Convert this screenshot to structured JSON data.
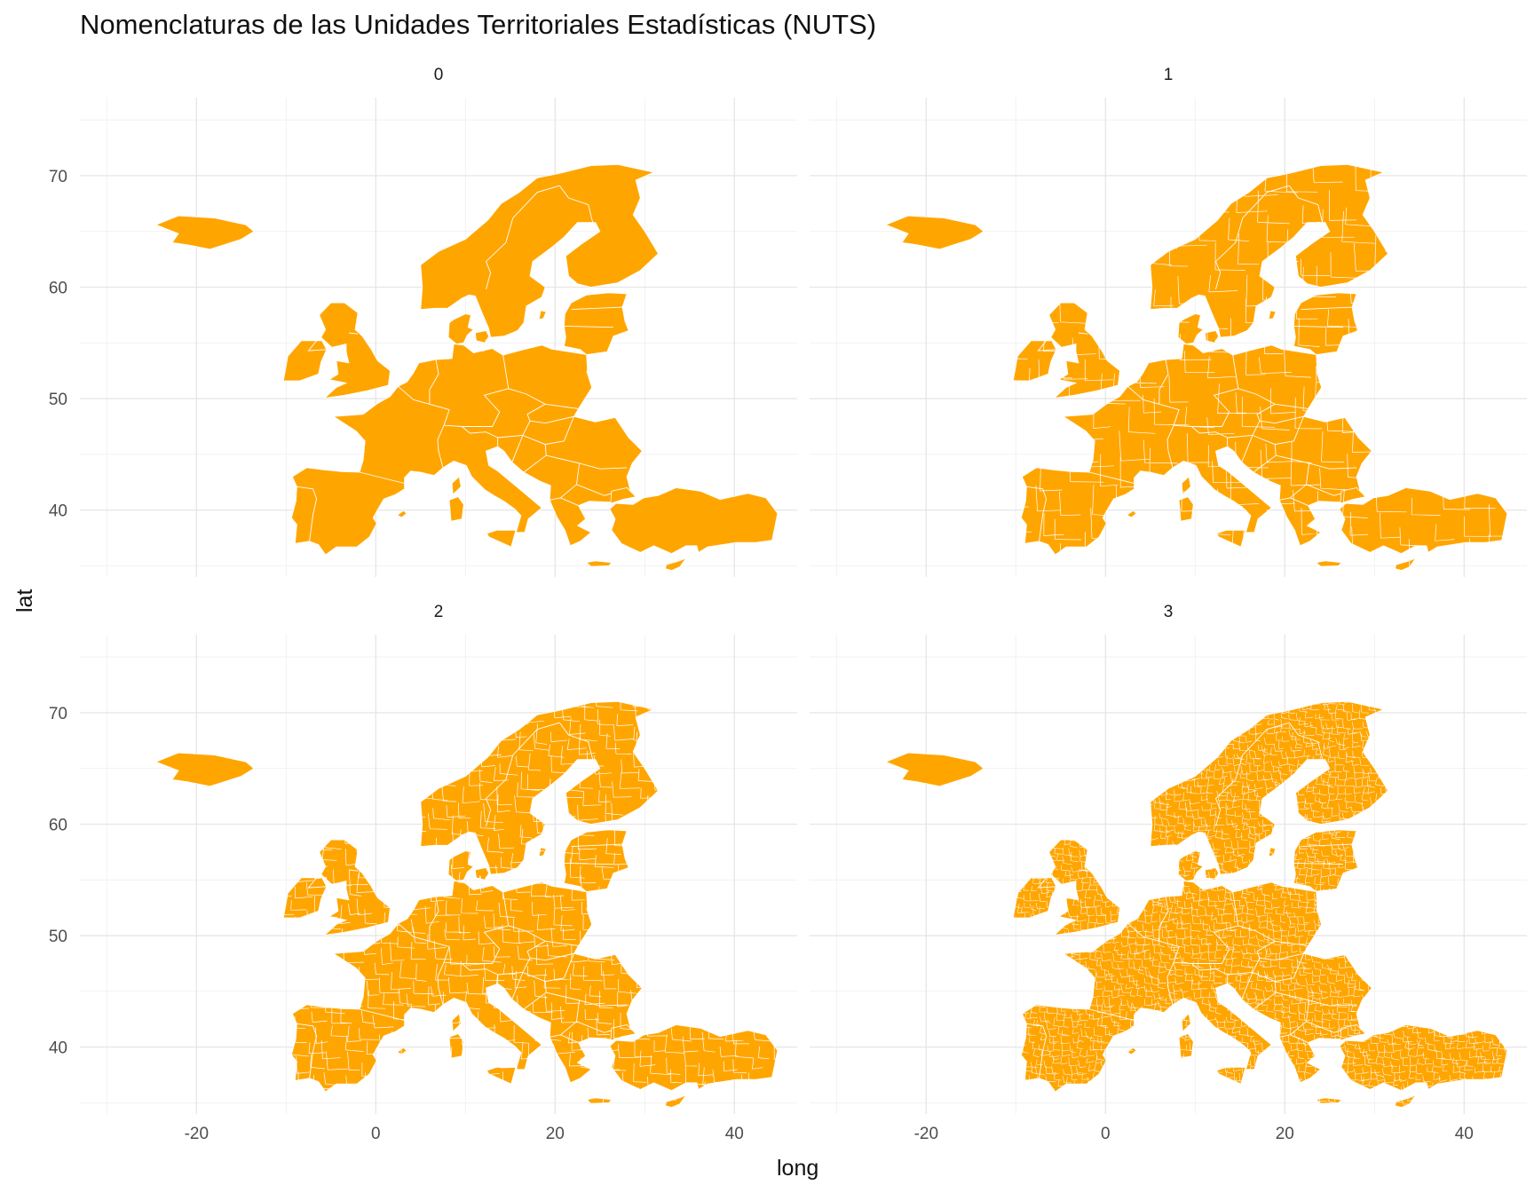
{
  "title": "Nomenclaturas de las Unidades Territoriales Estadísticas (NUTS)",
  "xlabel": "long",
  "ylabel": "lat",
  "colors": {
    "fill": "#FFA500",
    "border": "#ffffff",
    "grid": "#e6e6e6"
  },
  "chart_data": {
    "type": "map",
    "facets": [
      "0",
      "1",
      "2",
      "3"
    ],
    "xlim": [
      -33,
      47
    ],
    "ylim": [
      34,
      77
    ],
    "x_ticks": [
      -20,
      0,
      20,
      40
    ],
    "y_ticks": [
      40,
      50,
      60,
      70
    ],
    "x_tick_labels": [
      "-20",
      "0",
      "20",
      "40"
    ],
    "y_tick_labels": [
      "40",
      "50",
      "60",
      "70"
    ],
    "region": "Europe (NUTS regions)"
  }
}
